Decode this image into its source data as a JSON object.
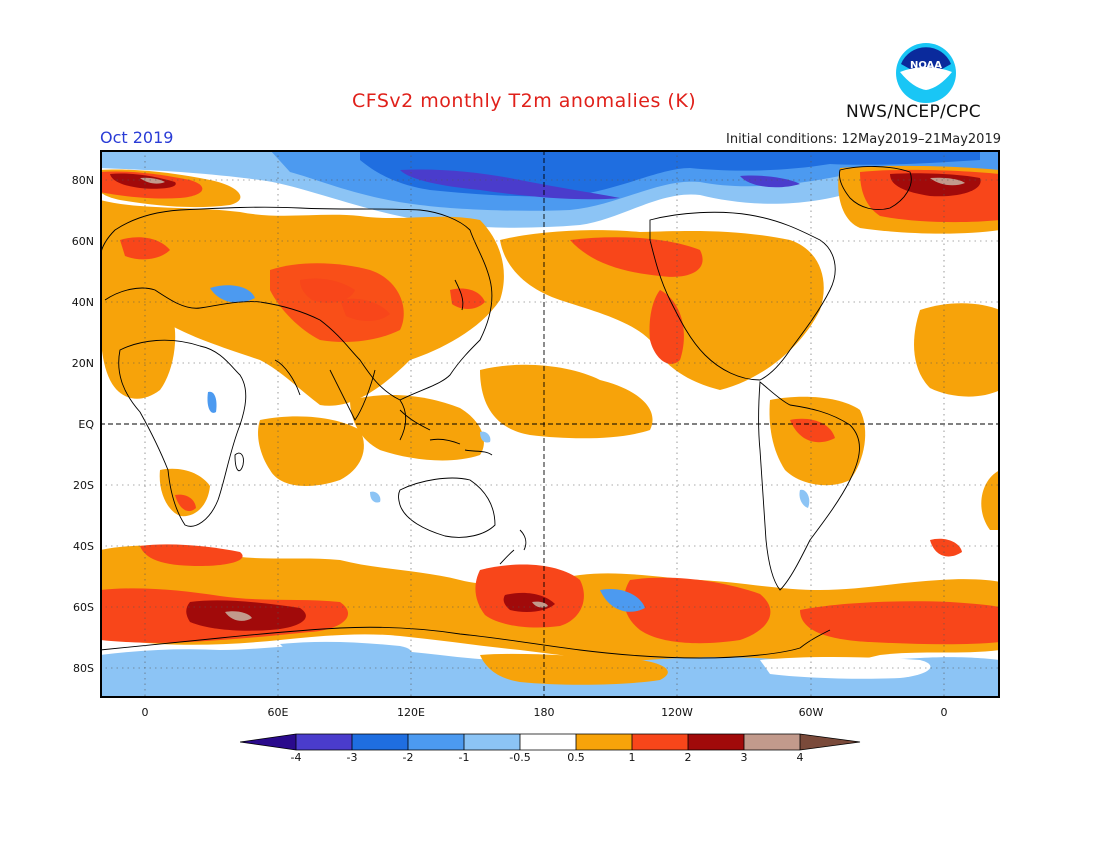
{
  "header": {
    "title": "CFSv2 monthly T2m anomalies (K)",
    "month": "Oct 2019",
    "initial_conditions": "Initial conditions: 12May2019–21May2019",
    "organization": "NWS/NCEP/CPC",
    "logo_text": "NOAA"
  },
  "axes": {
    "lat_labels": [
      "80N",
      "60N",
      "40N",
      "20N",
      "EQ",
      "20S",
      "40S",
      "60S",
      "80S"
    ],
    "lon_labels": [
      "0",
      "60E",
      "120E",
      "180",
      "120W",
      "60W",
      "0"
    ]
  },
  "colorbar": {
    "labels": [
      "-4",
      "-3",
      "-2",
      "-1",
      "-0.5",
      "0.5",
      "1",
      "2",
      "3",
      "4"
    ],
    "colors": [
      "#2a0a8c",
      "#4a3ccc",
      "#1f6ee0",
      "#4c9af0",
      "#8cc4f5",
      "#ffffff",
      "#f7a30a",
      "#f8461a",
      "#a10a0a",
      "#c29a8c",
      "#7a4a3a"
    ]
  },
  "colors": {
    "title": "#e0201a",
    "month": "#2a3cd6",
    "ocean_neutral": "#ffffff"
  }
}
